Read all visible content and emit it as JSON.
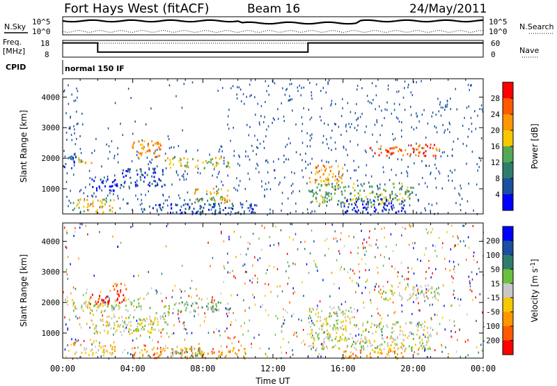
{
  "header": {
    "title": "Fort Hays West (fitACF)",
    "beam": "Beam 16",
    "date": "24/May/2011"
  },
  "status_panels": {
    "nsky_label": "N.Sky",
    "nsearch_label": "N.Search",
    "freq_label_line1": "Freq.",
    "freq_label_line2": "[MHz]",
    "nave_label": "Nave",
    "cpid_label": "CPID",
    "cpid_value": "normal 150 IF",
    "noise_ticks": [
      "10^5",
      "10^0"
    ],
    "freq_ticks": [
      "18",
      "8"
    ],
    "nave_ticks": [
      "60",
      "0"
    ]
  },
  "chart_data": [
    {
      "type": "heatmap",
      "name": "power",
      "ylabel": "Slant Range [km]",
      "xlabel": "",
      "x_ticks": [
        "00:00",
        "04:00",
        "08:00",
        "12:00",
        "16:00",
        "20:00",
        "00:00"
      ],
      "y_ticks": [
        1000,
        2000,
        3000,
        4000
      ],
      "ylim": [
        180,
        4600
      ],
      "colorbar": {
        "label": "Power [dB]",
        "ticks": [
          "28",
          "24",
          "20",
          "16",
          "12",
          "8",
          "4"
        ],
        "colors": [
          "#ff0000",
          "#ff5a00",
          "#ff9600",
          "#f5c800",
          "#55a955",
          "#2e7d6c",
          "#1a4ea0",
          "#0000ff"
        ]
      },
      "regions": [
        {
          "t": [
            0.0,
            0.8
          ],
          "r": [
            1700,
            2250
          ],
          "level": 6
        },
        {
          "t": [
            0.8,
            1.7
          ],
          "r": [
            1850,
            2100
          ],
          "level": 3
        },
        {
          "t": [
            1.6,
            3.3
          ],
          "r": [
            950,
            1350
          ],
          "level": 7
        },
        {
          "t": [
            3.3,
            5.8
          ],
          "r": [
            1100,
            1700
          ],
          "level": 6
        },
        {
          "t": [
            5.8,
            9.5
          ],
          "r": [
            1700,
            2050
          ],
          "level": 3
        },
        {
          "t": [
            3.8,
            5.6
          ],
          "r": [
            2000,
            2600
          ],
          "level": 2
        },
        {
          "t": [
            0.5,
            3.0
          ],
          "r": [
            250,
            700
          ],
          "level": 3
        },
        {
          "t": [
            4.5,
            11.0
          ],
          "r": [
            200,
            550
          ],
          "level": 6
        },
        {
          "t": [
            7.5,
            9.5
          ],
          "r": [
            550,
            1050
          ],
          "level": 3
        },
        {
          "t": [
            14.0,
            20.0
          ],
          "r": [
            500,
            1200
          ],
          "level": 4
        },
        {
          "t": [
            14.0,
            16.0
          ],
          "r": [
            1200,
            1800
          ],
          "level": 2
        },
        {
          "t": [
            16.0,
            19.5
          ],
          "r": [
            250,
            700
          ],
          "level": 7
        },
        {
          "t": [
            17.5,
            21.5
          ],
          "r": [
            2100,
            2500
          ],
          "level": 1
        }
      ]
    },
    {
      "type": "heatmap",
      "name": "velocity",
      "ylabel": "Slant Range [km]",
      "xlabel": "Time UT",
      "x_ticks": [
        "00:00",
        "04:00",
        "08:00",
        "12:00",
        "16:00",
        "20:00",
        "00:00"
      ],
      "y_ticks": [
        1000,
        2000,
        3000,
        4000
      ],
      "ylim": [
        180,
        4600
      ],
      "colorbar": {
        "label": "Velocity [m s",
        "label_sup": "-1",
        "label_end": "]",
        "ticks": [
          "200",
          "100",
          "50",
          "15",
          "-15",
          "-50",
          "-100",
          "-200"
        ],
        "colors": [
          "#0000ff",
          "#1a4ea0",
          "#2e7d6c",
          "#6ac040",
          "#c8c8c8",
          "#f5c800",
          "#ff9600",
          "#ff5a00",
          "#ff0000"
        ]
      },
      "regions": [
        {
          "t": [
            0.0,
            4.5
          ],
          "r": [
            1750,
            2150
          ],
          "level": 4
        },
        {
          "t": [
            1.5,
            3.5
          ],
          "r": [
            1950,
            2300
          ],
          "level": 8
        },
        {
          "t": [
            2.8,
            3.6
          ],
          "r": [
            2350,
            2650
          ],
          "level": 7
        },
        {
          "t": [
            1.6,
            6.0
          ],
          "r": [
            1000,
            1700
          ],
          "level": 4
        },
        {
          "t": [
            5.8,
            9.5
          ],
          "r": [
            1700,
            2050
          ],
          "level": 3
        },
        {
          "t": [
            0.5,
            3.0
          ],
          "r": [
            300,
            700
          ],
          "level": 5
        },
        {
          "t": [
            4.0,
            10.5
          ],
          "r": [
            200,
            550
          ],
          "level": 6
        },
        {
          "t": [
            6.0,
            8.0
          ],
          "r": [
            250,
            500
          ],
          "level": 3
        },
        {
          "t": [
            14.0,
            21.0
          ],
          "r": [
            500,
            1400
          ],
          "level": 4
        },
        {
          "t": [
            14.0,
            16.5
          ],
          "r": [
            1400,
            1900
          ],
          "level": 4
        },
        {
          "t": [
            16.0,
            19.5
          ],
          "r": [
            200,
            500
          ],
          "level": 6
        },
        {
          "t": [
            18.0,
            21.5
          ],
          "r": [
            2100,
            2600
          ],
          "level": 4
        }
      ]
    }
  ]
}
